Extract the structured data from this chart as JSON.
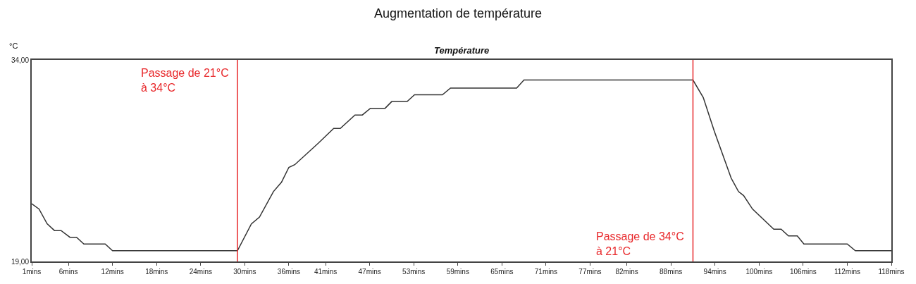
{
  "chart_data": {
    "type": "line",
    "title": "Augmentation de température",
    "subtitle": "Température",
    "ylabel": "°C",
    "x": [
      1,
      2,
      3.1,
      4.1,
      5,
      6.2,
      7.1,
      8.1,
      11,
      12,
      29,
      30.9,
      32,
      33.9,
      35,
      36,
      36.8,
      40,
      42.1,
      43,
      45,
      46,
      47.1,
      49.1,
      50,
      52.1,
      53.1,
      56.9,
      58,
      67,
      68,
      91,
      92.4,
      93.9,
      96.2,
      97.2,
      97.9,
      99.1,
      102,
      103,
      104,
      105.2,
      106.1,
      112,
      113.1,
      118
    ],
    "series": [
      {
        "color": "#333333",
        "values": [
          23.3,
          22.9,
          21.8,
          21.3,
          21.3,
          20.8,
          20.8,
          20.3,
          20.3,
          19.8,
          19.8,
          21.8,
          22.3,
          24.2,
          24.9,
          26.0,
          26.2,
          27.8,
          28.9,
          28.9,
          29.9,
          29.9,
          30.4,
          30.4,
          30.9,
          30.9,
          31.4,
          31.4,
          31.9,
          31.9,
          32.5,
          32.5,
          31.2,
          28.7,
          25.2,
          24.2,
          23.9,
          22.9,
          21.4,
          21.4,
          20.9,
          20.9,
          20.3,
          20.3,
          19.8,
          19.8
        ]
      }
    ],
    "xlim": [
      1,
      118
    ],
    "xticks": [
      {
        "value": 1,
        "label": "1mins"
      },
      {
        "value": 6,
        "label": "6mins"
      },
      {
        "value": 12,
        "label": "12mins"
      },
      {
        "value": 18,
        "label": "18mins"
      },
      {
        "value": 24,
        "label": "24mins"
      },
      {
        "value": 30,
        "label": "30mins"
      },
      {
        "value": 36,
        "label": "36mins"
      },
      {
        "value": 41,
        "label": "41mins"
      },
      {
        "value": 47,
        "label": "47mins"
      },
      {
        "value": 53,
        "label": "53mins"
      },
      {
        "value": 59,
        "label": "59mins"
      },
      {
        "value": 65,
        "label": "65mins"
      },
      {
        "value": 71,
        "label": "71mins"
      },
      {
        "value": 77,
        "label": "77mins"
      },
      {
        "value": 82,
        "label": "82mins"
      },
      {
        "value": 88,
        "label": "88mins"
      },
      {
        "value": 94,
        "label": "94mins"
      },
      {
        "value": 100,
        "label": "100mins"
      },
      {
        "value": 106,
        "label": "106mins"
      },
      {
        "value": 112,
        "label": "112mins"
      },
      {
        "value": 118,
        "label": "118mins"
      }
    ],
    "ylim": [
      19,
      34
    ],
    "yticks": [
      {
        "value": 19,
        "label": "19,00"
      },
      {
        "value": 34,
        "label": "34,00"
      }
    ],
    "ref_lines": [
      {
        "axis": "x",
        "value": 29,
        "label": "Passage de 21°C\nà 34°C",
        "color": "#e8282b"
      },
      {
        "axis": "x",
        "value": 91,
        "label": "Passage de 34°C\nà 21°C",
        "color": "#e8282b"
      }
    ],
    "marker": "none",
    "line_style": "solid"
  }
}
